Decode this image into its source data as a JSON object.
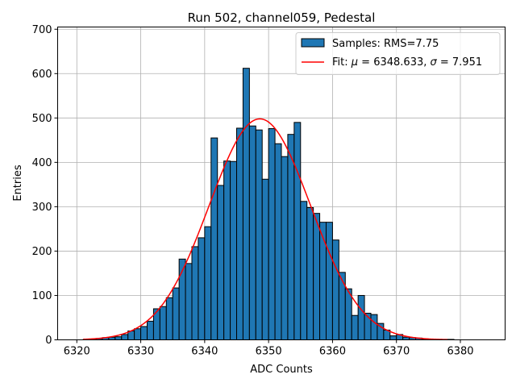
{
  "chart_data": {
    "type": "bar",
    "title": "Run 502, channel059, Pedestal",
    "xlabel": "ADC Counts",
    "ylabel": "Entries",
    "xlim": [
      6317,
      6387
    ],
    "ylim": [
      0,
      705
    ],
    "grid": true,
    "legend_position": "top-right",
    "x_ticks": [
      6320,
      6330,
      6340,
      6350,
      6360,
      6370,
      6380
    ],
    "y_ticks": [
      0,
      100,
      200,
      300,
      400,
      500,
      600,
      700
    ],
    "histogram": {
      "name": "Samples: RMS=7.75",
      "color": "#1f77b4",
      "edge_color": "#000000",
      "bin_start": 6321,
      "bin_width": 1,
      "counts": [
        1,
        2,
        3,
        5,
        6,
        7,
        12,
        20,
        25,
        30,
        42,
        70,
        75,
        95,
        117,
        182,
        172,
        210,
        230,
        255,
        455,
        348,
        403,
        402,
        477,
        612,
        482,
        473,
        362,
        476,
        442,
        413,
        463,
        490,
        312,
        298,
        285,
        265,
        265,
        225,
        152,
        115,
        55,
        100,
        60,
        57,
        37,
        22,
        9,
        12,
        6,
        5,
        4,
        2,
        1,
        1,
        1,
        1
      ]
    },
    "fit": {
      "name": "Fit: μ = 6348.633, σ = 7.951",
      "label_prefix": "Fit: ",
      "mu_symbol": "μ",
      "mu_text": " = 6348.633, ",
      "sigma_symbol": "σ",
      "sigma_text": " = 7.951",
      "color": "#ff0000",
      "mu": 6348.633,
      "sigma": 7.951,
      "amplitude": 498,
      "x_range": [
        6321,
        6378
      ]
    }
  }
}
